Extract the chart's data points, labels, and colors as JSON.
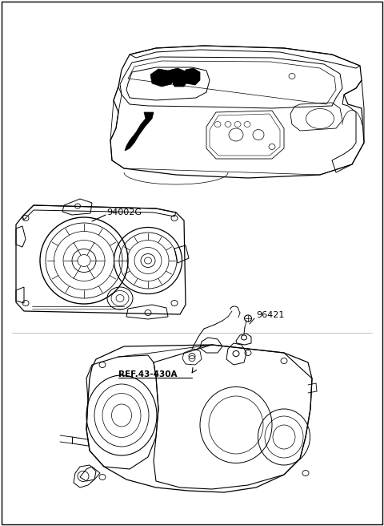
{
  "background_color": "#ffffff",
  "border_color": "#000000",
  "label_94002G": "94002G",
  "label_96421": "96421",
  "label_ref": "REF.43-430A",
  "text_color": "#000000",
  "figure_width": 4.8,
  "figure_height": 6.56,
  "dpi": 100
}
